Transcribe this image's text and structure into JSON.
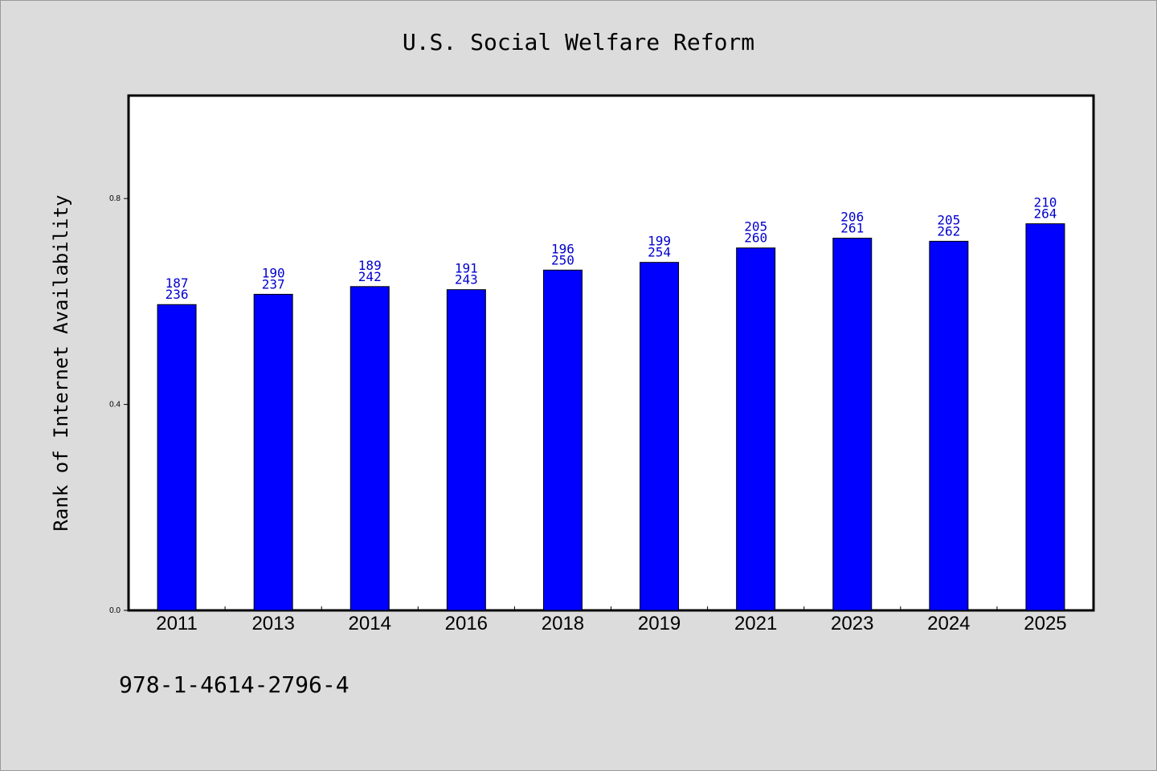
{
  "chart_data": {
    "type": "bar",
    "title": "U.S. Social Welfare Reform",
    "xlabel": "",
    "ylabel": "Rank of Internet Availability",
    "categories": [
      "2011",
      "2013",
      "2014",
      "2016",
      "2018",
      "2019",
      "2021",
      "2023",
      "2024",
      "2025"
    ],
    "values": [
      0.594,
      0.614,
      0.629,
      0.623,
      0.661,
      0.676,
      0.704,
      0.723,
      0.717,
      0.751
    ],
    "label_top": [
      "187",
      "190",
      "189",
      "191",
      "196",
      "199",
      "205",
      "206",
      "205",
      "210"
    ],
    "label_bottom": [
      "236",
      "237",
      "242",
      "243",
      "250",
      "254",
      "260",
      "261",
      "262",
      "264"
    ],
    "yticks": [
      "0.0",
      "0.4",
      "0.8"
    ],
    "ytick_values": [
      0.0,
      0.4,
      0.8
    ],
    "ylim": [
      0,
      1.0
    ],
    "grid": false,
    "bar_color": "#0000ff",
    "label_color": "#0000cd"
  },
  "footnote": "978-1-4614-2796-4"
}
